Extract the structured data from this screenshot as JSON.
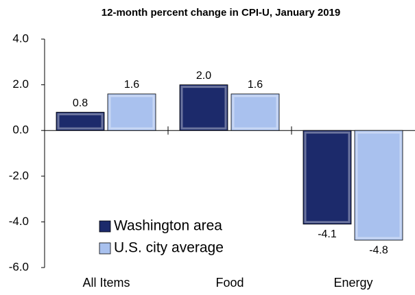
{
  "chart_data": {
    "type": "bar",
    "title": "12-month percent change in CPI-U, January 2019",
    "categories": [
      "All Items",
      "Food",
      "Energy"
    ],
    "series": [
      {
        "name": "Washington area",
        "color": "#1c2a6b",
        "values": [
          0.8,
          2.0,
          -4.1
        ],
        "value_labels": [
          "0.8",
          "2.0",
          "-4.1"
        ]
      },
      {
        "name": "U.S. city average",
        "color": "#a9c1ee",
        "values": [
          1.6,
          1.6,
          -4.8
        ],
        "value_labels": [
          "1.6",
          "1.6",
          "-4.8"
        ]
      }
    ],
    "ylim": [
      -6,
      4
    ],
    "yticks": [
      {
        "value": 4,
        "label": "4.0"
      },
      {
        "value": 2,
        "label": "2.0"
      },
      {
        "value": 0,
        "label": "0.0"
      },
      {
        "value": -2,
        "label": "-2.0"
      },
      {
        "value": -4,
        "label": "-4.0"
      },
      {
        "value": -6,
        "label": "-6.0"
      }
    ],
    "grid": false,
    "legend": "lower left"
  }
}
